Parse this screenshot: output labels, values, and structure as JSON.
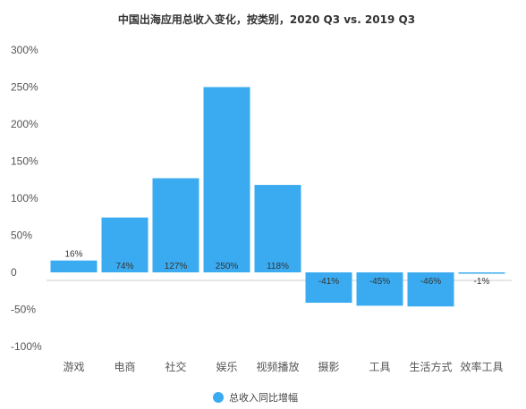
{
  "chart_data": {
    "type": "bar",
    "title": "中国出海应用总收入变化，按类别，2020 Q3 vs. 2019 Q3",
    "categories": [
      "游戏",
      "电商",
      "社交",
      "娱乐",
      "视频播放",
      "摄影",
      "工具",
      "生活方式",
      "效率工具"
    ],
    "series": [
      {
        "name": "总收入同比增幅",
        "values": [
          16,
          74,
          127,
          250,
          118,
          -41,
          -45,
          -46,
          -1
        ],
        "labels": [
          "16%",
          "74%",
          "127%",
          "250%",
          "118%",
          "-41%",
          "-45%",
          "-46%",
          "-1%"
        ],
        "color": "#3aabf0"
      }
    ],
    "yticks": [
      "300%",
      "250%",
      "200%",
      "150%",
      "100%",
      "50%",
      "0",
      "-50%",
      "-100%"
    ],
    "ylim": [
      -100,
      300
    ],
    "grid": false,
    "legend_position": "bottom",
    "xlabel": "",
    "ylabel": ""
  }
}
